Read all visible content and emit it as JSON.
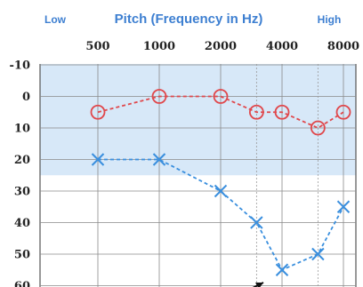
{
  "header": {
    "low_label": "Low",
    "title": "Pitch (Frequency in Hz)",
    "high_label": "High"
  },
  "chart_data": {
    "type": "line",
    "title": "Pitch (Frequency in Hz)",
    "xlabel": "",
    "ylabel": "",
    "x_scale": "log",
    "x_tick_labels": [
      "500",
      "1000",
      "2000",
      "4000",
      "8000"
    ],
    "y_tick_labels": [
      "-10",
      "0",
      "10",
      "20",
      "30",
      "40",
      "50",
      "60"
    ],
    "ylim": [
      -10,
      60
    ],
    "y_inverted": true,
    "grid": true,
    "shaded_band": {
      "from": -10,
      "to": 25,
      "color": "#d7e8f8"
    },
    "series": [
      {
        "marker": "circle",
        "color": "#e0484c",
        "x": [
          500,
          1000,
          2000,
          3000,
          4000,
          6000,
          8000
        ],
        "y": [
          5,
          0,
          0,
          5,
          5,
          10,
          5
        ]
      },
      {
        "marker": "cross",
        "color": "#3a8fde",
        "x": [
          500,
          1000,
          2000,
          3000,
          4000,
          6000,
          8000
        ],
        "y": [
          20,
          20,
          30,
          40,
          55,
          50,
          35
        ]
      }
    ]
  }
}
